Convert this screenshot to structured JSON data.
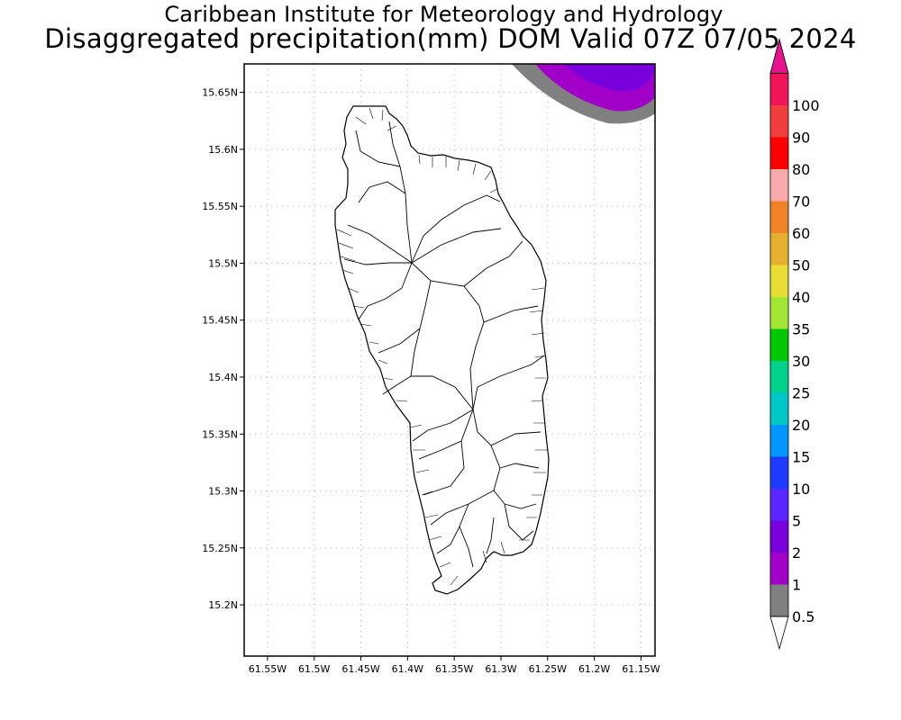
{
  "header": {
    "title": "Caribbean Institute for Meteorology and Hydrology",
    "subtitle": "Disaggregated precipitation(mm) DOM Valid 07Z 07/05 2024"
  },
  "map": {
    "lat_labels": [
      "15.65N",
      "15.6N",
      "15.55N",
      "15.5N",
      "15.45N",
      "15.4N",
      "15.35N",
      "15.3N",
      "15.25N",
      "15.2N"
    ],
    "lon_labels": [
      "61.55W",
      "61.5W",
      "61.45W",
      "61.4W",
      "61.35W",
      "61.3W",
      "61.25W",
      "61.2W",
      "61.15W"
    ],
    "lat_range": [
      15.155,
      15.675
    ],
    "lon_range": [
      61.575,
      61.135
    ],
    "grid": "dotted",
    "region": "Dominica"
  },
  "colorbar": {
    "labels": [
      "0.5",
      "1",
      "2",
      "5",
      "10",
      "15",
      "20",
      "25",
      "30",
      "35",
      "40",
      "50",
      "60",
      "70",
      "80",
      "90",
      "100"
    ],
    "colors": [
      "#808080",
      "#a000c8",
      "#7800dc",
      "#5a28ff",
      "#1e3cff",
      "#0096ff",
      "#00c8c8",
      "#00d28c",
      "#00c800",
      "#a0e632",
      "#e6dc32",
      "#e6af2d",
      "#f08228",
      "#faaaaa",
      "#ff0000",
      "#f03c3c",
      "#f0145a"
    ],
    "bottom_triangle_color": "#ffffff",
    "top_triangle_color": "#e6138c"
  }
}
